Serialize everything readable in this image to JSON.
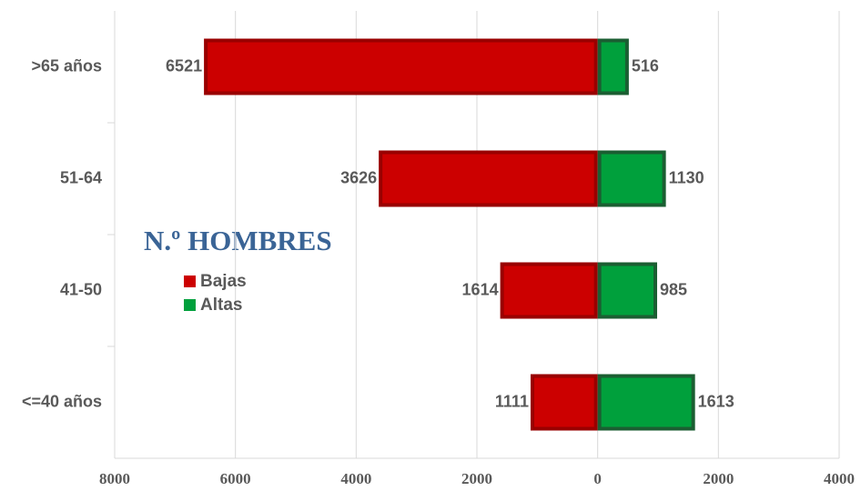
{
  "chart_data": {
    "type": "bar",
    "orientation": "horizontal",
    "stacked": true,
    "legend_title": "N.º HOMBRES",
    "categories": [
      ">65 años",
      "51-64",
      "41-50",
      "<=40 años"
    ],
    "series": [
      {
        "name": "Bajas",
        "color": "#cc0000",
        "border": "#990000",
        "values": [
          -6521,
          -3626,
          -1614,
          -1111
        ],
        "value_labels": [
          "6521",
          "3626",
          "1614",
          "1111"
        ]
      },
      {
        "name": "Altas",
        "color": "#00a03c",
        "border": "#1b5e32",
        "values": [
          516,
          1130,
          985,
          1613
        ]
      }
    ],
    "xlim": [
      -8000,
      4000
    ],
    "xticks": [
      {
        "value": -8000,
        "label": "8000"
      },
      {
        "value": -6000,
        "label": "6000"
      },
      {
        "value": -4000,
        "label": "4000"
      },
      {
        "value": -2000,
        "label": "2000"
      },
      0,
      2000,
      4000
    ],
    "grid": true
  }
}
